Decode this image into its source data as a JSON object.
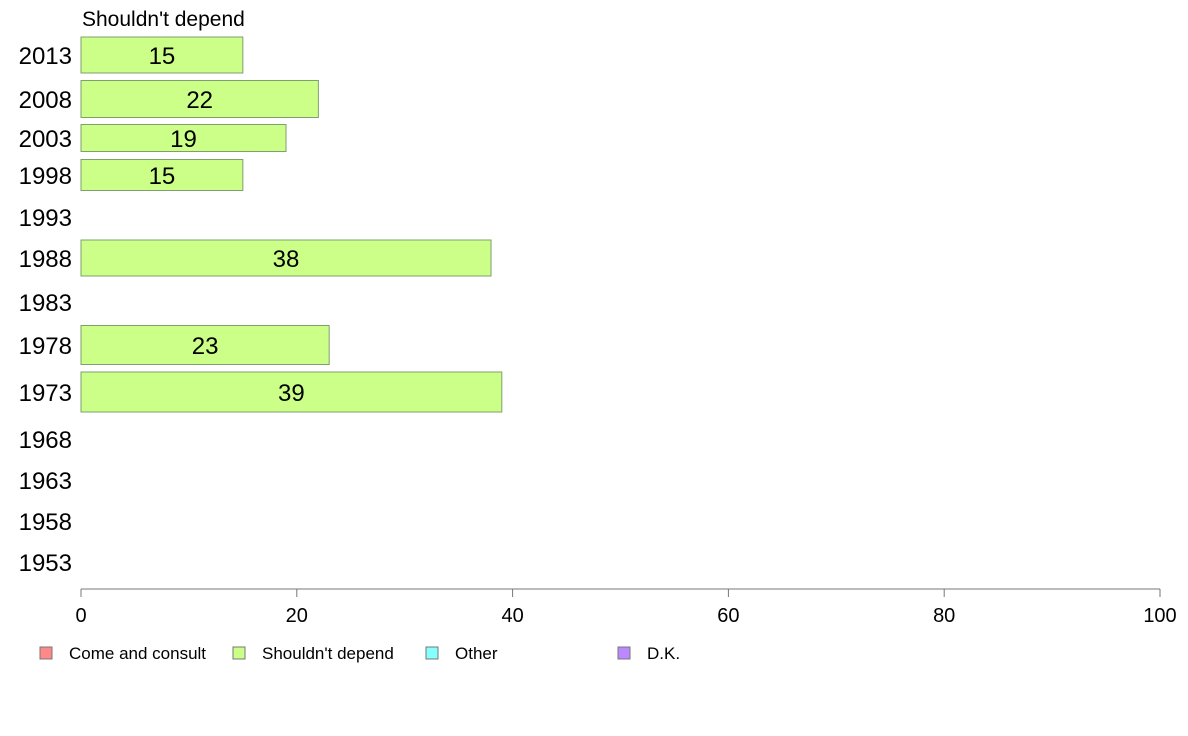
{
  "chart_data": {
    "type": "bar",
    "orientation": "horizontal",
    "panel_title": "Shouldn't depend",
    "categories": [
      "2013",
      "2008",
      "2003",
      "1998",
      "1993",
      "1988",
      "1983",
      "1978",
      "1973",
      "1968",
      "1963",
      "1958",
      "1953"
    ],
    "series": [
      {
        "name": "Shouldn't depend",
        "color": "#ccff88",
        "values": [
          15,
          22,
          19,
          15,
          null,
          38,
          null,
          23,
          39,
          null,
          null,
          null,
          null
        ]
      }
    ],
    "xlim": [
      0,
      100
    ],
    "xticks": [
      "0",
      "20",
      "40",
      "60",
      "80",
      "100"
    ],
    "grid": false,
    "legend": {
      "position": "bottom",
      "entries": [
        {
          "label": "Come and consult",
          "color": "#ff8888"
        },
        {
          "label": "Shouldn't depend",
          "color": "#ccff88"
        },
        {
          "label": "Other",
          "color": "#88ffff"
        },
        {
          "label": "D.K.",
          "color": "#bb88ff"
        }
      ]
    }
  }
}
